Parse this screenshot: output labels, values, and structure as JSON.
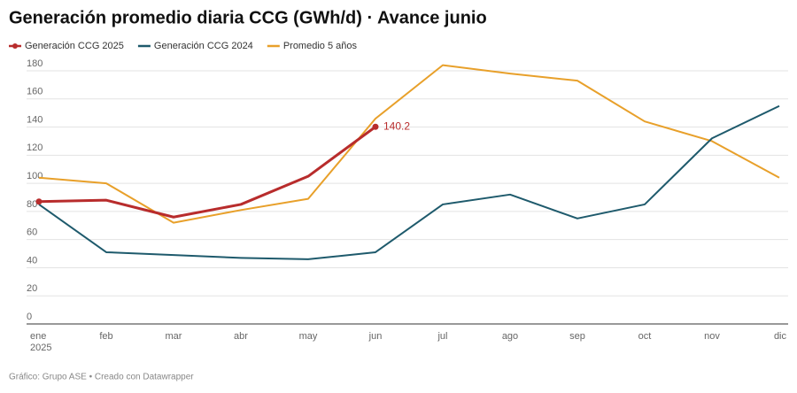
{
  "chart_data": {
    "type": "line",
    "title": "Generación promedio diaria CCG (GWh/d) · Avance junio",
    "categories": [
      "ene",
      "feb",
      "mar",
      "abr",
      "may",
      "jun",
      "jul",
      "ago",
      "sep",
      "oct",
      "nov",
      "dic"
    ],
    "year_label": "2025",
    "series": [
      {
        "name": "Generación CCG 2025",
        "color": "#b82c2c",
        "values": [
          87,
          88,
          76,
          85,
          105,
          140.2,
          null,
          null,
          null,
          null,
          null,
          null
        ]
      },
      {
        "name": "Generación CCG 2024",
        "color": "#1e5a6c",
        "values": [
          85,
          51,
          49,
          47,
          46,
          51,
          85,
          92,
          75,
          85,
          132,
          155
        ]
      },
      {
        "name": "Promedio 5 años",
        "color": "#e8a02a",
        "values": [
          104,
          100,
          72,
          81,
          89,
          146,
          184,
          178,
          173,
          144,
          130,
          104
        ]
      }
    ],
    "ylim": [
      0,
      180
    ],
    "yticks": [
      0,
      20,
      40,
      60,
      80,
      100,
      120,
      140,
      160,
      180
    ],
    "grid": true,
    "footer": "Gráfico: Grupo ASE • Creado con Datawrapper"
  }
}
